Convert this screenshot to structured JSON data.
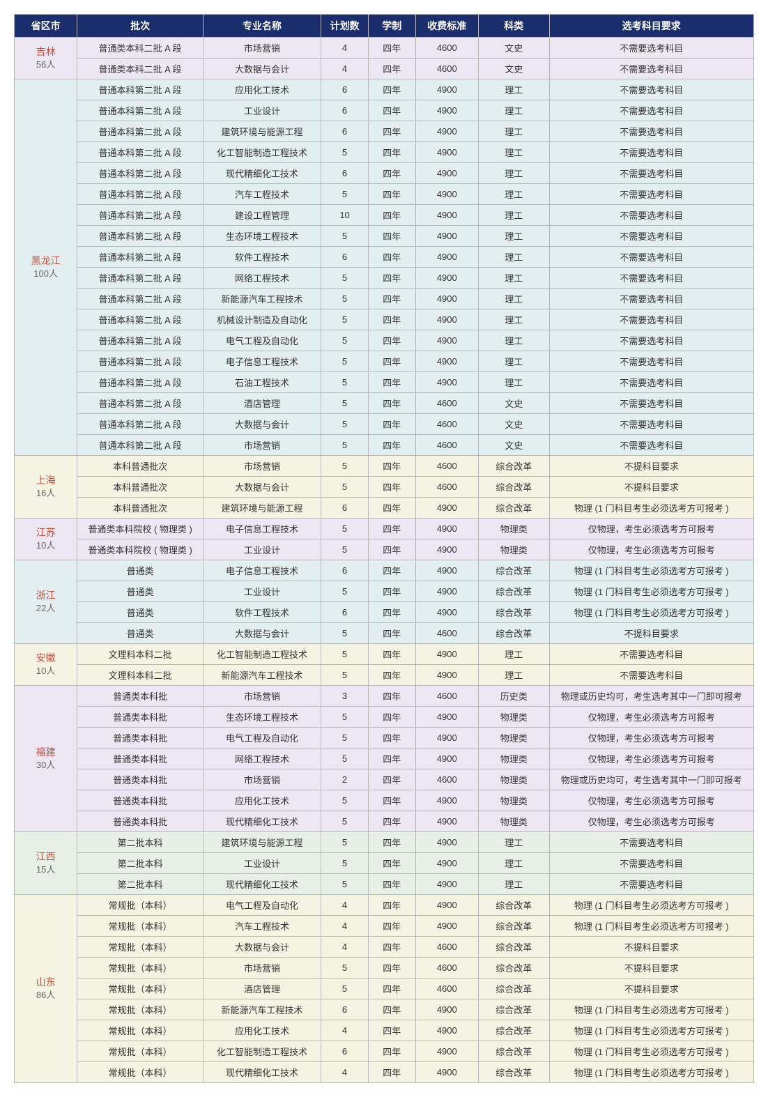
{
  "headers": [
    "省区市",
    "批次",
    "专业名称",
    "计划数",
    "学制",
    "收费标准",
    "科类",
    "选考科目要求"
  ],
  "colors": {
    "header_bg": "#1a2e6e",
    "header_fg": "#ffffff",
    "border": "#b8b8b8",
    "region_name": "#c8503c",
    "region_count": "#666666",
    "cell_text": "#333333",
    "tints": {
      "lavender": "#ece7f2",
      "teal": "#e2eef0",
      "cream": "#f5f4e3",
      "mint": "#e7f0e5"
    }
  },
  "regions": [
    {
      "name": "吉林",
      "count": "56人",
      "tint": "lavender",
      "rows": [
        [
          "普通类本科二批 A 段",
          "市场营销",
          "4",
          "四年",
          "4600",
          "文史",
          "不需要选考科目"
        ],
        [
          "普通类本科二批 A 段",
          "大数据与会计",
          "4",
          "四年",
          "4600",
          "文史",
          "不需要选考科目"
        ]
      ]
    },
    {
      "name": "黑龙江",
      "count": "100人",
      "tint": "teal",
      "rows": [
        [
          "普通本科第二批 A 段",
          "应用化工技术",
          "6",
          "四年",
          "4900",
          "理工",
          "不需要选考科目"
        ],
        [
          "普通本科第二批 A 段",
          "工业设计",
          "6",
          "四年",
          "4900",
          "理工",
          "不需要选考科目"
        ],
        [
          "普通本科第二批 A 段",
          "建筑环境与能源工程",
          "6",
          "四年",
          "4900",
          "理工",
          "不需要选考科目"
        ],
        [
          "普通本科第二批 A 段",
          "化工智能制造工程技术",
          "5",
          "四年",
          "4900",
          "理工",
          "不需要选考科目"
        ],
        [
          "普通本科第二批 A 段",
          "现代精细化工技术",
          "6",
          "四年",
          "4900",
          "理工",
          "不需要选考科目"
        ],
        [
          "普通本科第二批 A 段",
          "汽车工程技术",
          "5",
          "四年",
          "4900",
          "理工",
          "不需要选考科目"
        ],
        [
          "普通本科第二批 A 段",
          "建设工程管理",
          "10",
          "四年",
          "4900",
          "理工",
          "不需要选考科目"
        ],
        [
          "普通本科第二批 A 段",
          "生态环境工程技术",
          "5",
          "四年",
          "4900",
          "理工",
          "不需要选考科目"
        ],
        [
          "普通本科第二批 A 段",
          "软件工程技术",
          "6",
          "四年",
          "4900",
          "理工",
          "不需要选考科目"
        ],
        [
          "普通本科第二批 A 段",
          "网络工程技术",
          "5",
          "四年",
          "4900",
          "理工",
          "不需要选考科目"
        ],
        [
          "普通本科第二批 A 段",
          "新能源汽车工程技术",
          "5",
          "四年",
          "4900",
          "理工",
          "不需要选考科目"
        ],
        [
          "普通本科第二批 A 段",
          "机械设计制造及自动化",
          "5",
          "四年",
          "4900",
          "理工",
          "不需要选考科目"
        ],
        [
          "普通本科第二批 A 段",
          "电气工程及自动化",
          "5",
          "四年",
          "4900",
          "理工",
          "不需要选考科目"
        ],
        [
          "普通本科第二批 A 段",
          "电子信息工程技术",
          "5",
          "四年",
          "4900",
          "理工",
          "不需要选考科目"
        ],
        [
          "普通本科第二批 A 段",
          "石油工程技术",
          "5",
          "四年",
          "4900",
          "理工",
          "不需要选考科目"
        ],
        [
          "普通本科第二批 A 段",
          "酒店管理",
          "5",
          "四年",
          "4600",
          "文史",
          "不需要选考科目"
        ],
        [
          "普通本科第二批 A 段",
          "大数据与会计",
          "5",
          "四年",
          "4600",
          "文史",
          "不需要选考科目"
        ],
        [
          "普通本科第二批 A 段",
          "市场营销",
          "5",
          "四年",
          "4600",
          "文史",
          "不需要选考科目"
        ]
      ]
    },
    {
      "name": "上海",
      "count": "16人",
      "tint": "cream",
      "rows": [
        [
          "本科普通批次",
          "市场营销",
          "5",
          "四年",
          "4600",
          "综合改革",
          "不提科目要求"
        ],
        [
          "本科普通批次",
          "大数据与会计",
          "5",
          "四年",
          "4600",
          "综合改革",
          "不提科目要求"
        ],
        [
          "本科普通批次",
          "建筑环境与能源工程",
          "6",
          "四年",
          "4900",
          "综合改革",
          "物理 (1 门科目考生必须选考方可报考 )"
        ]
      ]
    },
    {
      "name": "江苏",
      "count": "10人",
      "tint": "lavender",
      "rows": [
        [
          "普通类本科院校 ( 物理类 )",
          "电子信息工程技术",
          "5",
          "四年",
          "4900",
          "物理类",
          "仅物理，考生必须选考方可报考"
        ],
        [
          "普通类本科院校 ( 物理类 )",
          "工业设计",
          "5",
          "四年",
          "4900",
          "物理类",
          "仅物理，考生必须选考方可报考"
        ]
      ]
    },
    {
      "name": "浙江",
      "count": "22人",
      "tint": "teal",
      "rows": [
        [
          "普通类",
          "电子信息工程技术",
          "6",
          "四年",
          "4900",
          "综合改革",
          "物理 (1 门科目考生必须选考方可报考 )"
        ],
        [
          "普通类",
          "工业设计",
          "5",
          "四年",
          "4900",
          "综合改革",
          "物理 (1 门科目考生必须选考方可报考 )"
        ],
        [
          "普通类",
          "软件工程技术",
          "6",
          "四年",
          "4900",
          "综合改革",
          "物理 (1 门科目考生必须选考方可报考 )"
        ],
        [
          "普通类",
          "大数据与会计",
          "5",
          "四年",
          "4600",
          "综合改革",
          "不提科目要求"
        ]
      ]
    },
    {
      "name": "安徽",
      "count": "10人",
      "tint": "cream",
      "rows": [
        [
          "文理科本科二批",
          "化工智能制造工程技术",
          "5",
          "四年",
          "4900",
          "理工",
          "不需要选考科目"
        ],
        [
          "文理科本科二批",
          "新能源汽车工程技术",
          "5",
          "四年",
          "4900",
          "理工",
          "不需要选考科目"
        ]
      ]
    },
    {
      "name": "福建",
      "count": "30人",
      "tint": "lavender",
      "rows": [
        [
          "普通类本科批",
          "市场营销",
          "3",
          "四年",
          "4600",
          "历史类",
          "物理或历史均可，考生选考其中一门即可报考"
        ],
        [
          "普通类本科批",
          "生态环境工程技术",
          "5",
          "四年",
          "4900",
          "物理类",
          "仅物理，考生必须选考方可报考"
        ],
        [
          "普通类本科批",
          "电气工程及自动化",
          "5",
          "四年",
          "4900",
          "物理类",
          "仅物理，考生必须选考方可报考"
        ],
        [
          "普通类本科批",
          "网络工程技术",
          "5",
          "四年",
          "4900",
          "物理类",
          "仅物理，考生必须选考方可报考"
        ],
        [
          "普通类本科批",
          "市场营销",
          "2",
          "四年",
          "4600",
          "物理类",
          "物理或历史均可，考生选考其中一门即可报考"
        ],
        [
          "普通类本科批",
          "应用化工技术",
          "5",
          "四年",
          "4900",
          "物理类",
          "仅物理，考生必须选考方可报考"
        ],
        [
          "普通类本科批",
          "现代精细化工技术",
          "5",
          "四年",
          "4900",
          "物理类",
          "仅物理，考生必须选考方可报考"
        ]
      ]
    },
    {
      "name": "江西",
      "count": "15人",
      "tint": "mint",
      "rows": [
        [
          "第二批本科",
          "建筑环境与能源工程",
          "5",
          "四年",
          "4900",
          "理工",
          "不需要选考科目"
        ],
        [
          "第二批本科",
          "工业设计",
          "5",
          "四年",
          "4900",
          "理工",
          "不需要选考科目"
        ],
        [
          "第二批本科",
          "现代精细化工技术",
          "5",
          "四年",
          "4900",
          "理工",
          "不需要选考科目"
        ]
      ]
    },
    {
      "name": "山东",
      "count": "86人",
      "tint": "cream",
      "rows": [
        [
          "常规批（本科）",
          "电气工程及自动化",
          "4",
          "四年",
          "4900",
          "综合改革",
          "物理 (1 门科目考生必须选考方可报考 )"
        ],
        [
          "常规批（本科）",
          "汽车工程技术",
          "4",
          "四年",
          "4900",
          "综合改革",
          "物理 (1 门科目考生必须选考方可报考 )"
        ],
        [
          "常规批（本科）",
          "大数据与会计",
          "4",
          "四年",
          "4600",
          "综合改革",
          "不提科目要求"
        ],
        [
          "常规批（本科）",
          "市场营销",
          "5",
          "四年",
          "4600",
          "综合改革",
          "不提科目要求"
        ],
        [
          "常规批（本科）",
          "酒店管理",
          "5",
          "四年",
          "4600",
          "综合改革",
          "不提科目要求"
        ],
        [
          "常规批（本科）",
          "新能源汽车工程技术",
          "6",
          "四年",
          "4900",
          "综合改革",
          "物理 (1 门科目考生必须选考方可报考 )"
        ],
        [
          "常规批（本科）",
          "应用化工技术",
          "4",
          "四年",
          "4900",
          "综合改革",
          "物理 (1 门科目考生必须选考方可报考 )"
        ],
        [
          "常规批（本科）",
          "化工智能制造工程技术",
          "6",
          "四年",
          "4900",
          "综合改革",
          "物理 (1 门科目考生必须选考方可报考 )"
        ],
        [
          "常规批（本科）",
          "现代精细化工技术",
          "4",
          "四年",
          "4900",
          "综合改革",
          "物理 (1 门科目考生必须选考方可报考 )"
        ]
      ]
    }
  ]
}
